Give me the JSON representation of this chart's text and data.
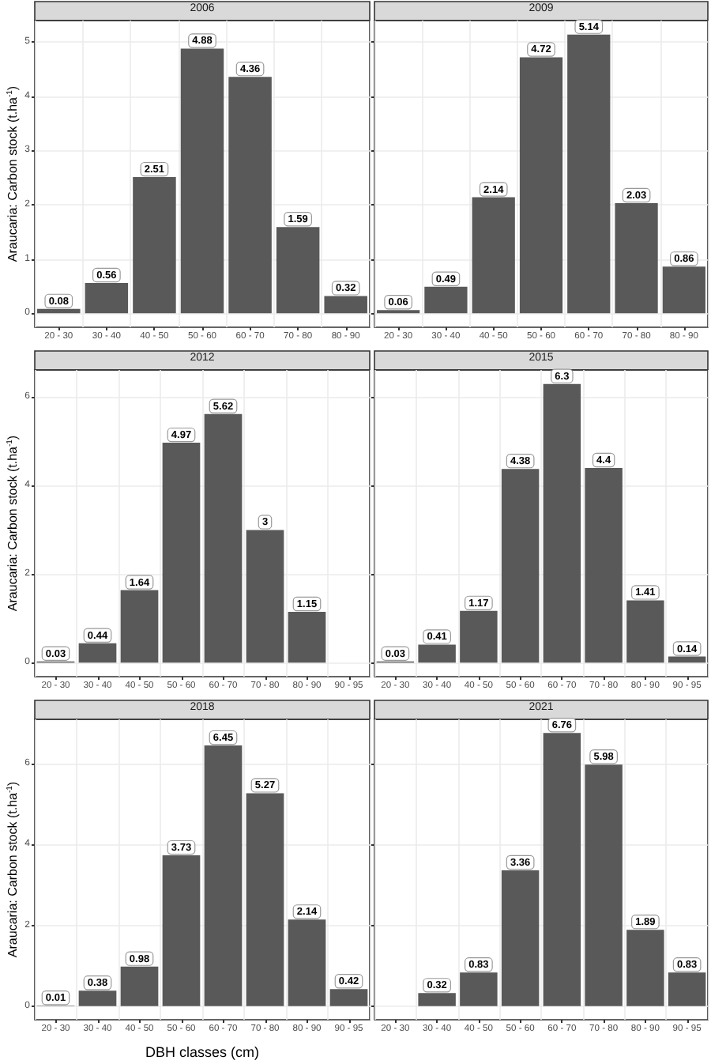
{
  "chart_data": [
    {
      "type": "bar",
      "title": "2006",
      "ylabel": "Araucaria: Carbon stock (t.ha$^{-1}$)",
      "categories": [
        "20 - 30",
        "30 - 40",
        "40 - 50",
        "50 - 60",
        "60 - 70",
        "70 - 80",
        "80 - 90"
      ],
      "values": [
        0.08,
        0.56,
        2.51,
        4.88,
        4.36,
        1.59,
        0.32
      ],
      "color": "#595959",
      "ylim": [
        -0.257,
        5.397
      ],
      "yticks": [
        0,
        1,
        2,
        3,
        4,
        5
      ],
      "grid": true,
      "data_labels": true
    },
    {
      "type": "bar",
      "title": "2009",
      "categories": [
        "20 - 30",
        "30 - 40",
        "40 - 50",
        "50 - 60",
        "60 - 70",
        "70 - 80",
        "80 - 90"
      ],
      "values": [
        0.06,
        0.49,
        2.14,
        4.72,
        5.14,
        2.03,
        0.86
      ],
      "color": "#595959",
      "ylim": [
        -0.257,
        5.397
      ],
      "yticks": [
        0,
        1,
        2,
        3,
        4,
        5
      ],
      "grid": true,
      "data_labels": true,
      "tick_labels": "x"
    },
    {
      "type": "bar",
      "title": "2012",
      "ylabel": "Araucaria: Carbon stock (t.ha$^{-1}$)",
      "categories": [
        "20 - 30",
        "30 - 40",
        "40 - 50",
        "50 - 60",
        "60 - 70",
        "70 - 80",
        "80 - 90",
        "90 - 95"
      ],
      "values": [
        0.03,
        0.44,
        1.64,
        4.97,
        5.62,
        3,
        1.15,
        null
      ],
      "color": "#595959",
      "ylim": [
        -0.315,
        6.615
      ],
      "yticks": [
        0,
        2,
        4,
        6
      ],
      "grid": true,
      "data_labels": true
    },
    {
      "type": "bar",
      "title": "2015",
      "categories": [
        "20 - 30",
        "30 - 40",
        "40 - 50",
        "50 - 60",
        "60 - 70",
        "70 - 80",
        "80 - 90",
        "90 - 95"
      ],
      "values": [
        0.03,
        0.41,
        1.17,
        4.38,
        6.3,
        4.4,
        1.41,
        0.14
      ],
      "color": "#595959",
      "ylim": [
        -0.315,
        6.615
      ],
      "yticks": [
        0,
        2,
        4,
        6
      ],
      "grid": true,
      "data_labels": true,
      "tick_labels": "x"
    },
    {
      "type": "bar",
      "title": "2018",
      "ylabel": "Araucaria: Carbon stock (t.ha$^{-1}$)",
      "xlabel": "DBH classes (cm)",
      "categories": [
        "20 - 30",
        "30 - 40",
        "40 - 50",
        "50 - 60",
        "60 - 70",
        "70 - 80",
        "80 - 90",
        "90 - 95"
      ],
      "values": [
        0.01,
        0.38,
        0.98,
        3.73,
        6.45,
        5.27,
        2.14,
        0.42
      ],
      "color": "#595959",
      "ylim": [
        -0.338,
        7.098
      ],
      "yticks": [
        0,
        2,
        4,
        6
      ],
      "grid": true,
      "data_labels": true
    },
    {
      "type": "bar",
      "title": "2021",
      "categories": [
        "20 - 30",
        "30 - 40",
        "40 - 50",
        "50 - 60",
        "60 - 70",
        "70 - 80",
        "80 - 90",
        "90 - 95"
      ],
      "values": [
        null,
        0.32,
        0.83,
        3.36,
        6.76,
        5.98,
        1.89,
        0.83
      ],
      "color": "#595959",
      "ylim": [
        -0.338,
        7.098
      ],
      "yticks": [
        0,
        2,
        4,
        6
      ],
      "grid": true,
      "data_labels": true,
      "tick_labels": "x"
    }
  ]
}
